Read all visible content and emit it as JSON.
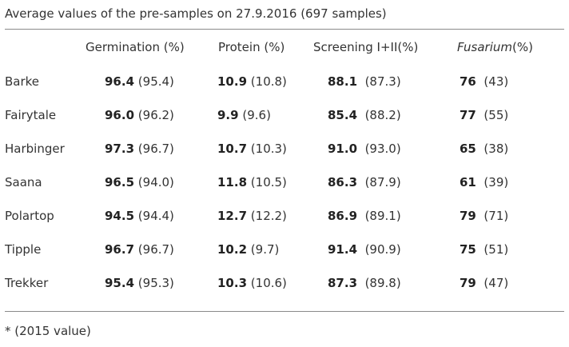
{
  "caption": "Average values of the pre-samples on 27.9.2016 (697 samples)",
  "headers": {
    "germination": "Germination (%)",
    "protein": "Protein (%)",
    "screening": "Screening I+II(%)",
    "fusarium_name": "Fusarium",
    "fusarium_unit": "(%)"
  },
  "rows": [
    {
      "name": "Barke",
      "germ": "96.4",
      "germ_prev": "(95.4)",
      "prot": "10.9",
      "prot_prev": "(10.8)",
      "scr": "88.1",
      "scr_prev": "(87.3)",
      "fus": "76",
      "fus_prev": "(43)"
    },
    {
      "name": "Fairytale",
      "germ": "96.0",
      "germ_prev": "(96.2)",
      "prot": "9.9",
      "prot_prev": "(9.6)",
      "scr": "85.4",
      "scr_prev": "(88.2)",
      "fus": "77",
      "fus_prev": "(55)"
    },
    {
      "name": "Harbinger",
      "germ": "97.3",
      "germ_prev": "(96.7)",
      "prot": "10.7",
      "prot_prev": "(10.3)",
      "scr": "91.0",
      "scr_prev": "(93.0)",
      "fus": "65",
      "fus_prev": "(38)"
    },
    {
      "name": "Saana",
      "germ": "96.5",
      "germ_prev": "(94.0)",
      "prot": "11.8",
      "prot_prev": "(10.5)",
      "scr": "86.3",
      "scr_prev": "(87.9)",
      "fus": "61",
      "fus_prev": "(39)"
    },
    {
      "name": "Polartop",
      "germ": "94.5",
      "germ_prev": "(94.4)",
      "prot": "12.7",
      "prot_prev": "(12.2)",
      "scr": "86.9",
      "scr_prev": "(89.1)",
      "fus": "79",
      "fus_prev": "(71)"
    },
    {
      "name": "Tipple",
      "germ": "96.7",
      "germ_prev": "(96.7)",
      "prot": "10.2",
      "prot_prev": "(9.7)",
      "scr": "91.4",
      "scr_prev": "(90.9)",
      "fus": "75",
      "fus_prev": "(51)"
    },
    {
      "name": "Trekker",
      "germ": "95.4",
      "germ_prev": "(95.3)",
      "prot": "10.3",
      "prot_prev": "(10.6)",
      "scr": "87.3",
      "scr_prev": "(89.8)",
      "fus": "79",
      "fus_prev": "(47)"
    }
  ],
  "footnote": "* (2015 value)"
}
